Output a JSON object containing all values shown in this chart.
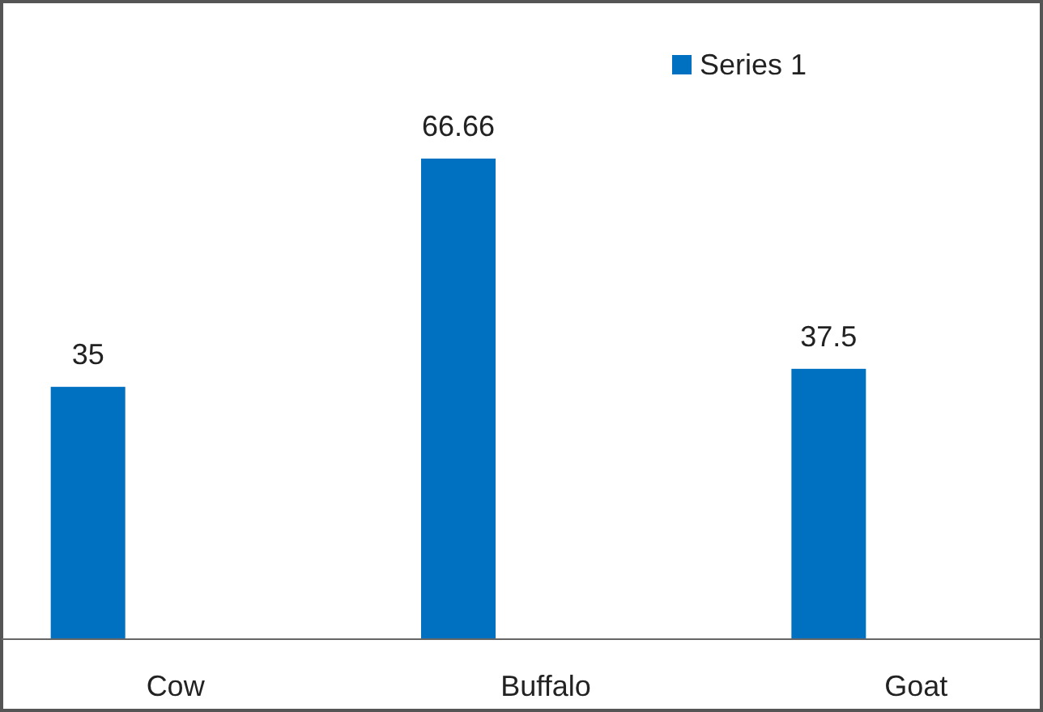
{
  "chart_data": {
    "type": "bar",
    "categories": [
      "Cow",
      "Buffalo",
      "Goat"
    ],
    "series": [
      {
        "name": "Series 1",
        "color": "#0070c0",
        "values": [
          35,
          66.66,
          37.5
        ]
      }
    ],
    "data_labels": true,
    "legend": "top right"
  }
}
